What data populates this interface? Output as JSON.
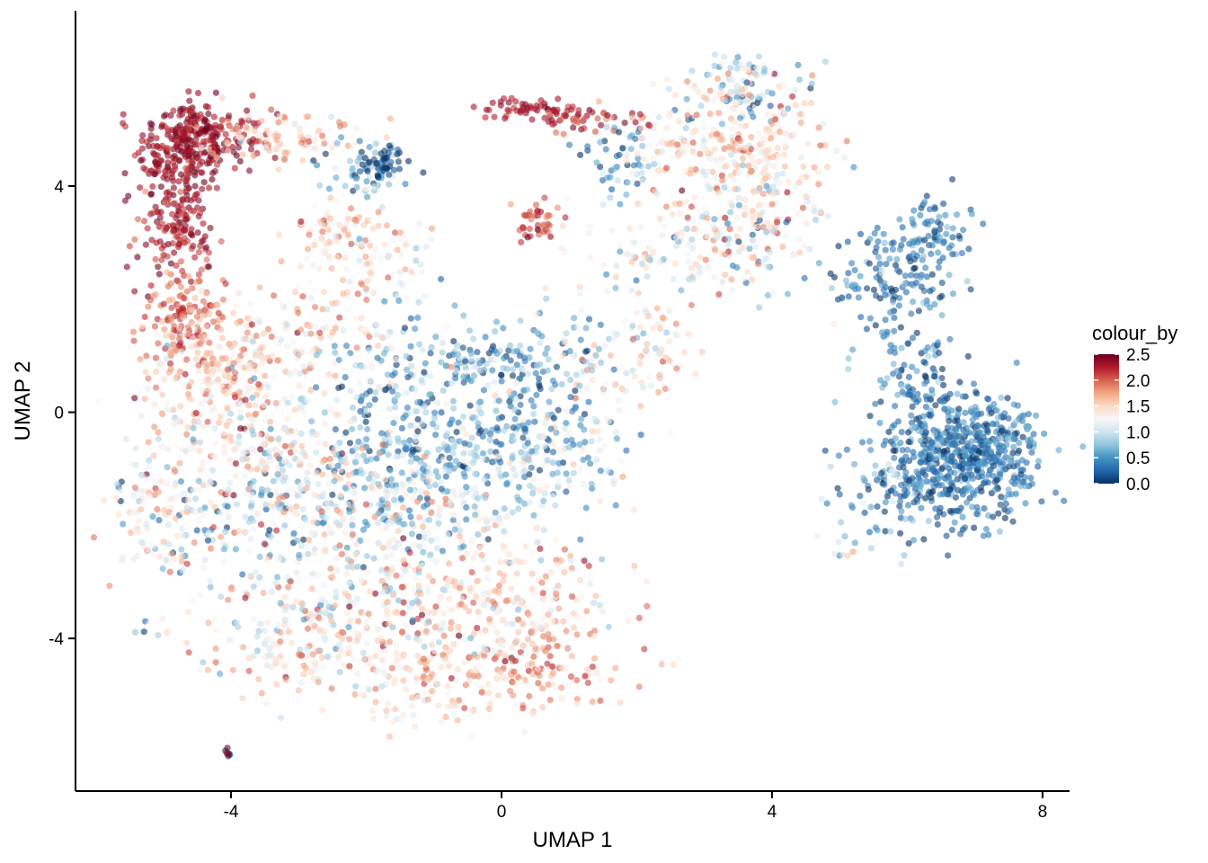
{
  "chart_data": {
    "type": "scatter",
    "xlabel": "UMAP 1",
    "ylabel": "UMAP 2",
    "xlim": [
      -6.3,
      8.4
    ],
    "ylim": [
      -6.7,
      7.1
    ],
    "x_ticks": [
      -4,
      0,
      4,
      8
    ],
    "y_ticks": [
      -4,
      0,
      4
    ],
    "x_tick_labels": [
      "-4",
      "0",
      "4",
      "8"
    ],
    "y_tick_labels": [
      "-4",
      "0",
      "4"
    ],
    "grid": false,
    "point_opacity": 0.6,
    "legend": {
      "title": "colour_by",
      "position": "right",
      "range": [
        0,
        2.5
      ],
      "tick_values": [
        2.5,
        2.0,
        1.5,
        1.0,
        0.5,
        0.0
      ],
      "tick_labels": [
        "2.5",
        "2.0",
        "1.5",
        "1.0",
        "0.5",
        "0.0"
      ],
      "colors": [
        "#053061",
        "#2166ac",
        "#4393c3",
        "#92c5de",
        "#d1e5f0",
        "#f7f7f7",
        "#fddbc7",
        "#f4a582",
        "#d6604d",
        "#b2182b",
        "#67001f"
      ]
    },
    "clusters": [
      {
        "cx": -4.7,
        "cy": 4.6,
        "sx": 0.35,
        "sy": 0.45,
        "n": 220,
        "v": 2.35,
        "vs": 0.12
      },
      {
        "cx": -4.3,
        "cy": 4.9,
        "sx": 0.45,
        "sy": 0.25,
        "n": 120,
        "v": 2.3,
        "vs": 0.12
      },
      {
        "cx": -3.3,
        "cy": 4.9,
        "sx": 0.55,
        "sy": 0.22,
        "n": 90,
        "v": 1.6,
        "vs": 0.25
      },
      {
        "cx": -4.8,
        "cy": 3.2,
        "sx": 0.3,
        "sy": 0.55,
        "n": 140,
        "v": 2.25,
        "vs": 0.15
      },
      {
        "cx": -4.7,
        "cy": 1.7,
        "sx": 0.3,
        "sy": 0.45,
        "n": 120,
        "v": 2.0,
        "vs": 0.2
      },
      {
        "cx": -4.1,
        "cy": 0.9,
        "sx": 0.55,
        "sy": 0.6,
        "n": 200,
        "v": 1.65,
        "vs": 0.25
      },
      {
        "cx": -2.0,
        "cy": 4.3,
        "sx": 0.35,
        "sy": 0.25,
        "n": 60,
        "v": 0.5,
        "vs": 0.4
      },
      {
        "cx": -1.75,
        "cy": 4.4,
        "sx": 0.15,
        "sy": 0.15,
        "n": 40,
        "v": 0.1,
        "vs": 0.1
      },
      {
        "cx": -2.5,
        "cy": 3.2,
        "sx": 0.35,
        "sy": 0.3,
        "n": 60,
        "v": 1.6,
        "vs": 0.3
      },
      {
        "cx": -1.8,
        "cy": 2.8,
        "sx": 0.45,
        "sy": 0.45,
        "n": 60,
        "v": 1.3,
        "vs": 0.3
      },
      {
        "cx": 0.55,
        "cy": 5.35,
        "sx": 0.45,
        "sy": 0.08,
        "n": 60,
        "v": 2.3,
        "vs": 0.1
      },
      {
        "cx": 1.4,
        "cy": 5.15,
        "sx": 0.45,
        "sy": 0.12,
        "n": 40,
        "v": 2.1,
        "vs": 0.2
      },
      {
        "cx": 1.7,
        "cy": 4.5,
        "sx": 0.35,
        "sy": 0.35,
        "n": 50,
        "v": 0.5,
        "vs": 0.4
      },
      {
        "cx": 0.5,
        "cy": 3.4,
        "sx": 0.18,
        "sy": 0.15,
        "n": 40,
        "v": 2.05,
        "vs": 0.15
      },
      {
        "cx": 3.6,
        "cy": 5.7,
        "sx": 0.5,
        "sy": 0.35,
        "n": 130,
        "v": 1.0,
        "vs": 0.5
      },
      {
        "cx": 3.8,
        "cy": 4.5,
        "sx": 0.6,
        "sy": 0.5,
        "n": 180,
        "v": 1.45,
        "vs": 0.3
      },
      {
        "cx": 3.6,
        "cy": 3.1,
        "sx": 0.55,
        "sy": 0.5,
        "n": 150,
        "v": 1.3,
        "vs": 0.45
      },
      {
        "cx": 2.6,
        "cy": 4.7,
        "sx": 0.5,
        "sy": 0.45,
        "n": 70,
        "v": 1.4,
        "vs": 0.35
      },
      {
        "cx": 2.2,
        "cy": 2.7,
        "sx": 0.6,
        "sy": 0.45,
        "n": 70,
        "v": 1.2,
        "vs": 0.35
      },
      {
        "cx": 5.6,
        "cy": 2.3,
        "sx": 0.4,
        "sy": 0.45,
        "n": 110,
        "v": 0.3,
        "vs": 0.25
      },
      {
        "cx": 6.4,
        "cy": 3.1,
        "sx": 0.3,
        "sy": 0.4,
        "n": 90,
        "v": 0.3,
        "vs": 0.2
      },
      {
        "cx": 6.1,
        "cy": 0.6,
        "sx": 0.35,
        "sy": 0.45,
        "n": 100,
        "v": 0.35,
        "vs": 0.25
      },
      {
        "cx": 6.8,
        "cy": -0.8,
        "sx": 0.55,
        "sy": 0.55,
        "n": 480,
        "v": 0.3,
        "vs": 0.22
      },
      {
        "cx": 7.3,
        "cy": -0.6,
        "sx": 0.3,
        "sy": 0.45,
        "n": 120,
        "v": 0.35,
        "vs": 0.25
      },
      {
        "cx": 5.8,
        "cy": -1.4,
        "sx": 0.4,
        "sy": 0.45,
        "n": 90,
        "v": 0.45,
        "vs": 0.3
      },
      {
        "cx": 0.0,
        "cy": 0.9,
        "sx": 0.5,
        "sy": 0.4,
        "n": 130,
        "v": 0.5,
        "vs": 0.35
      },
      {
        "cx": -1.7,
        "cy": 0.7,
        "sx": 0.6,
        "sy": 0.6,
        "n": 110,
        "v": 0.75,
        "vs": 0.4
      },
      {
        "cx": -1.0,
        "cy": -0.6,
        "sx": 0.9,
        "sy": 0.55,
        "n": 260,
        "v": 0.6,
        "vs": 0.4
      },
      {
        "cx": -3.2,
        "cy": -1.6,
        "sx": 1.0,
        "sy": 0.7,
        "n": 250,
        "v": 0.9,
        "vs": 0.55
      },
      {
        "cx": -1.4,
        "cy": -1.6,
        "sx": 1.0,
        "sy": 0.6,
        "n": 240,
        "v": 1.1,
        "vs": 0.5
      },
      {
        "cx": 0.8,
        "cy": -0.6,
        "sx": 0.6,
        "sy": 0.6,
        "n": 150,
        "v": 0.8,
        "vs": 0.5
      },
      {
        "cx": 1.4,
        "cy": 0.9,
        "sx": 0.45,
        "sy": 0.5,
        "n": 70,
        "v": 1.0,
        "vs": 0.45
      },
      {
        "cx": -3.8,
        "cy": -0.4,
        "sx": 0.75,
        "sy": 0.6,
        "n": 200,
        "v": 1.35,
        "vs": 0.35
      },
      {
        "cx": -5.0,
        "cy": -1.9,
        "sx": 0.45,
        "sy": 0.45,
        "n": 90,
        "v": 1.3,
        "vs": 0.3
      },
      {
        "cx": -2.4,
        "cy": -3.2,
        "sx": 1.1,
        "sy": 0.6,
        "n": 260,
        "v": 1.3,
        "vs": 0.45
      },
      {
        "cx": -1.3,
        "cy": -4.7,
        "sx": 0.6,
        "sy": 0.45,
        "n": 130,
        "v": 1.55,
        "vs": 0.35
      },
      {
        "cx": 0.3,
        "cy": -3.2,
        "sx": 0.85,
        "sy": 0.5,
        "n": 180,
        "v": 1.5,
        "vs": 0.35
      },
      {
        "cx": 0.4,
        "cy": -4.5,
        "sx": 0.7,
        "sy": 0.4,
        "n": 160,
        "v": 1.7,
        "vs": 0.3
      },
      {
        "cx": -3.1,
        "cy": -4.3,
        "sx": 0.7,
        "sy": 0.35,
        "n": 90,
        "v": 1.45,
        "vs": 0.35
      },
      {
        "cx": 2.3,
        "cy": 1.1,
        "sx": 0.25,
        "sy": 0.5,
        "n": 50,
        "v": 1.5,
        "vs": 0.3
      },
      {
        "cx": -2.8,
        "cy": 1.5,
        "sx": 0.6,
        "sy": 0.45,
        "n": 80,
        "v": 1.5,
        "vs": 0.3
      },
      {
        "cx": -5.2,
        "cy": -3.8,
        "sx": 0.15,
        "sy": 0.15,
        "n": 6,
        "v": 1.0,
        "vs": 0.4
      },
      {
        "cx": 5.1,
        "cy": -2.5,
        "sx": 0.4,
        "sy": 0.15,
        "n": 10,
        "v": 0.8,
        "vs": 0.5
      },
      {
        "cx": -4.05,
        "cy": -6.05,
        "sx": 0.02,
        "sy": 0.04,
        "n": 4,
        "v": 0.0,
        "vs": 0.0
      },
      {
        "cx": -4.05,
        "cy": -6.05,
        "sx": 0.02,
        "sy": 0.04,
        "n": 3,
        "v": 2.4,
        "vs": 0.05
      }
    ]
  }
}
